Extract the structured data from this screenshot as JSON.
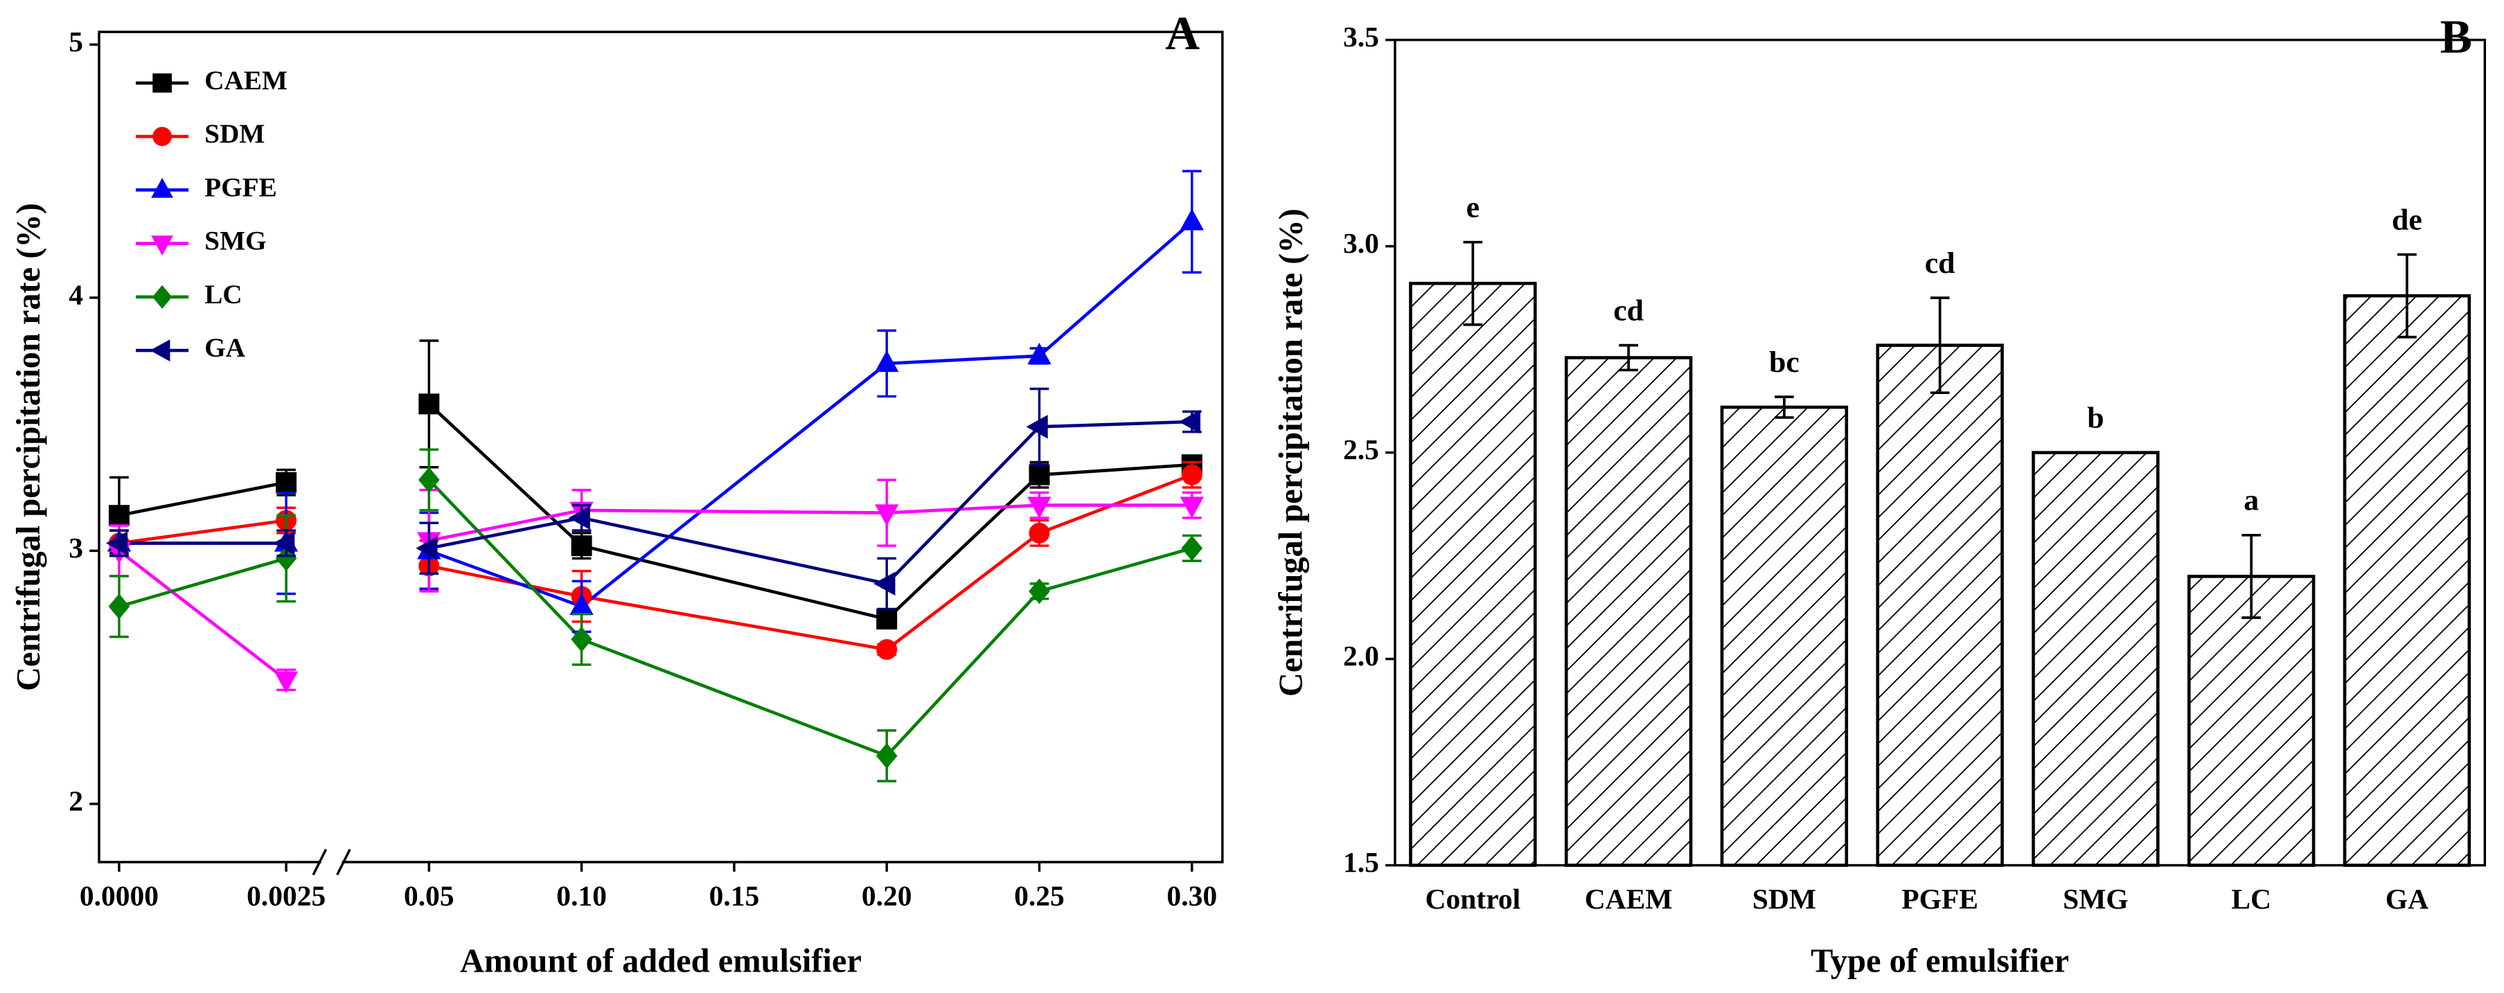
{
  "chart_data": [
    {
      "type": "line",
      "label": "A",
      "xlabel": "Amount of added emulsifier",
      "ylabel": "Centrifugal percipitation rate (%)",
      "x": [
        0,
        0.0025,
        0.05,
        0.1,
        0.2,
        0.25,
        0.3
      ],
      "xlim": [
        -0.0003,
        0.31
      ],
      "xbreak": [
        0.003,
        0.022
      ],
      "xticks": [
        {
          "value": 0,
          "label": "0.0000"
        },
        0.0025,
        0.05,
        {
          "value": 0.1,
          "label": "0.10"
        },
        0.15,
        {
          "value": 0.2,
          "label": "0.20"
        },
        0.25,
        {
          "value": 0.3,
          "label": "0.30"
        }
      ],
      "ylim": [
        1.77,
        5.05
      ],
      "yticks": [
        2,
        3,
        4,
        5
      ],
      "legend": "upper left",
      "series": [
        {
          "name": "CAEM",
          "color": "#000000",
          "marker": "square",
          "values": [
            3.14,
            3.27,
            3.58,
            3.02,
            2.73,
            3.3,
            3.34
          ],
          "errors": [
            0.15,
            0.05,
            0.25,
            0.05,
            0.03,
            0.05,
            0.03
          ]
        },
        {
          "name": "SDM",
          "color": "#ff0000",
          "marker": "circle",
          "values": [
            3.03,
            3.12,
            2.94,
            2.82,
            2.61,
            3.07,
            3.3
          ],
          "errors": [
            0.05,
            0.05,
            0.1,
            0.1,
            0.02,
            0.05,
            0.05
          ]
        },
        {
          "name": "PGFE",
          "color": "#0000ff",
          "marker": "triangle-up",
          "values": [
            3.03,
            3.03,
            3.0,
            2.78,
            3.74,
            3.77,
            4.3
          ],
          "errors": [
            0.05,
            0.2,
            0.15,
            0.1,
            0.13,
            0.03,
            0.2
          ]
        },
        {
          "name": "SMG",
          "color": "#ff00ff",
          "marker": "triangle-down",
          "values": [
            3.0,
            2.49,
            3.04,
            3.16,
            3.15,
            3.18,
            3.18
          ],
          "errors": [
            0.1,
            0.04,
            0.2,
            0.08,
            0.13,
            0.05,
            0.05
          ]
        },
        {
          "name": "LC",
          "color": "#008000",
          "marker": "diamond",
          "values": [
            2.78,
            2.97,
            3.28,
            2.65,
            2.19,
            2.84,
            3.01
          ],
          "errors": [
            0.12,
            0.17,
            0.12,
            0.1,
            0.1,
            0.03,
            0.05
          ]
        },
        {
          "name": "GA",
          "color": "#000080",
          "marker": "triangle-left",
          "values": [
            3.03,
            3.03,
            3.01,
            3.13,
            2.87,
            3.49,
            3.51
          ],
          "errors": [
            0.05,
            0.05,
            0.1,
            0.05,
            0.1,
            0.15,
            0.04
          ]
        }
      ]
    },
    {
      "type": "bar",
      "label": "B",
      "xlabel": "Type of emulsifier",
      "ylabel": "Centrifugal percipitation rate (%)",
      "categories": [
        "Control",
        "CAEM",
        "SDM",
        "PGFE",
        "SMG",
        "LC",
        "GA"
      ],
      "values": [
        2.91,
        2.73,
        2.61,
        2.76,
        2.5,
        2.2,
        2.88
      ],
      "errors": [
        0.1,
        0.03,
        0.025,
        0.115,
        0,
        0.1,
        0.1
      ],
      "letters": [
        "e",
        "cd",
        "bc",
        "cd",
        "b",
        "a",
        "de"
      ],
      "color": "#000000",
      "hatch": "//",
      "ylim": [
        1.5,
        3.5
      ],
      "yticks": [
        1.5,
        {
          "value": 2,
          "label": "2.0"
        },
        2.5,
        {
          "value": 3,
          "label": "3.0"
        },
        3.5
      ]
    }
  ]
}
